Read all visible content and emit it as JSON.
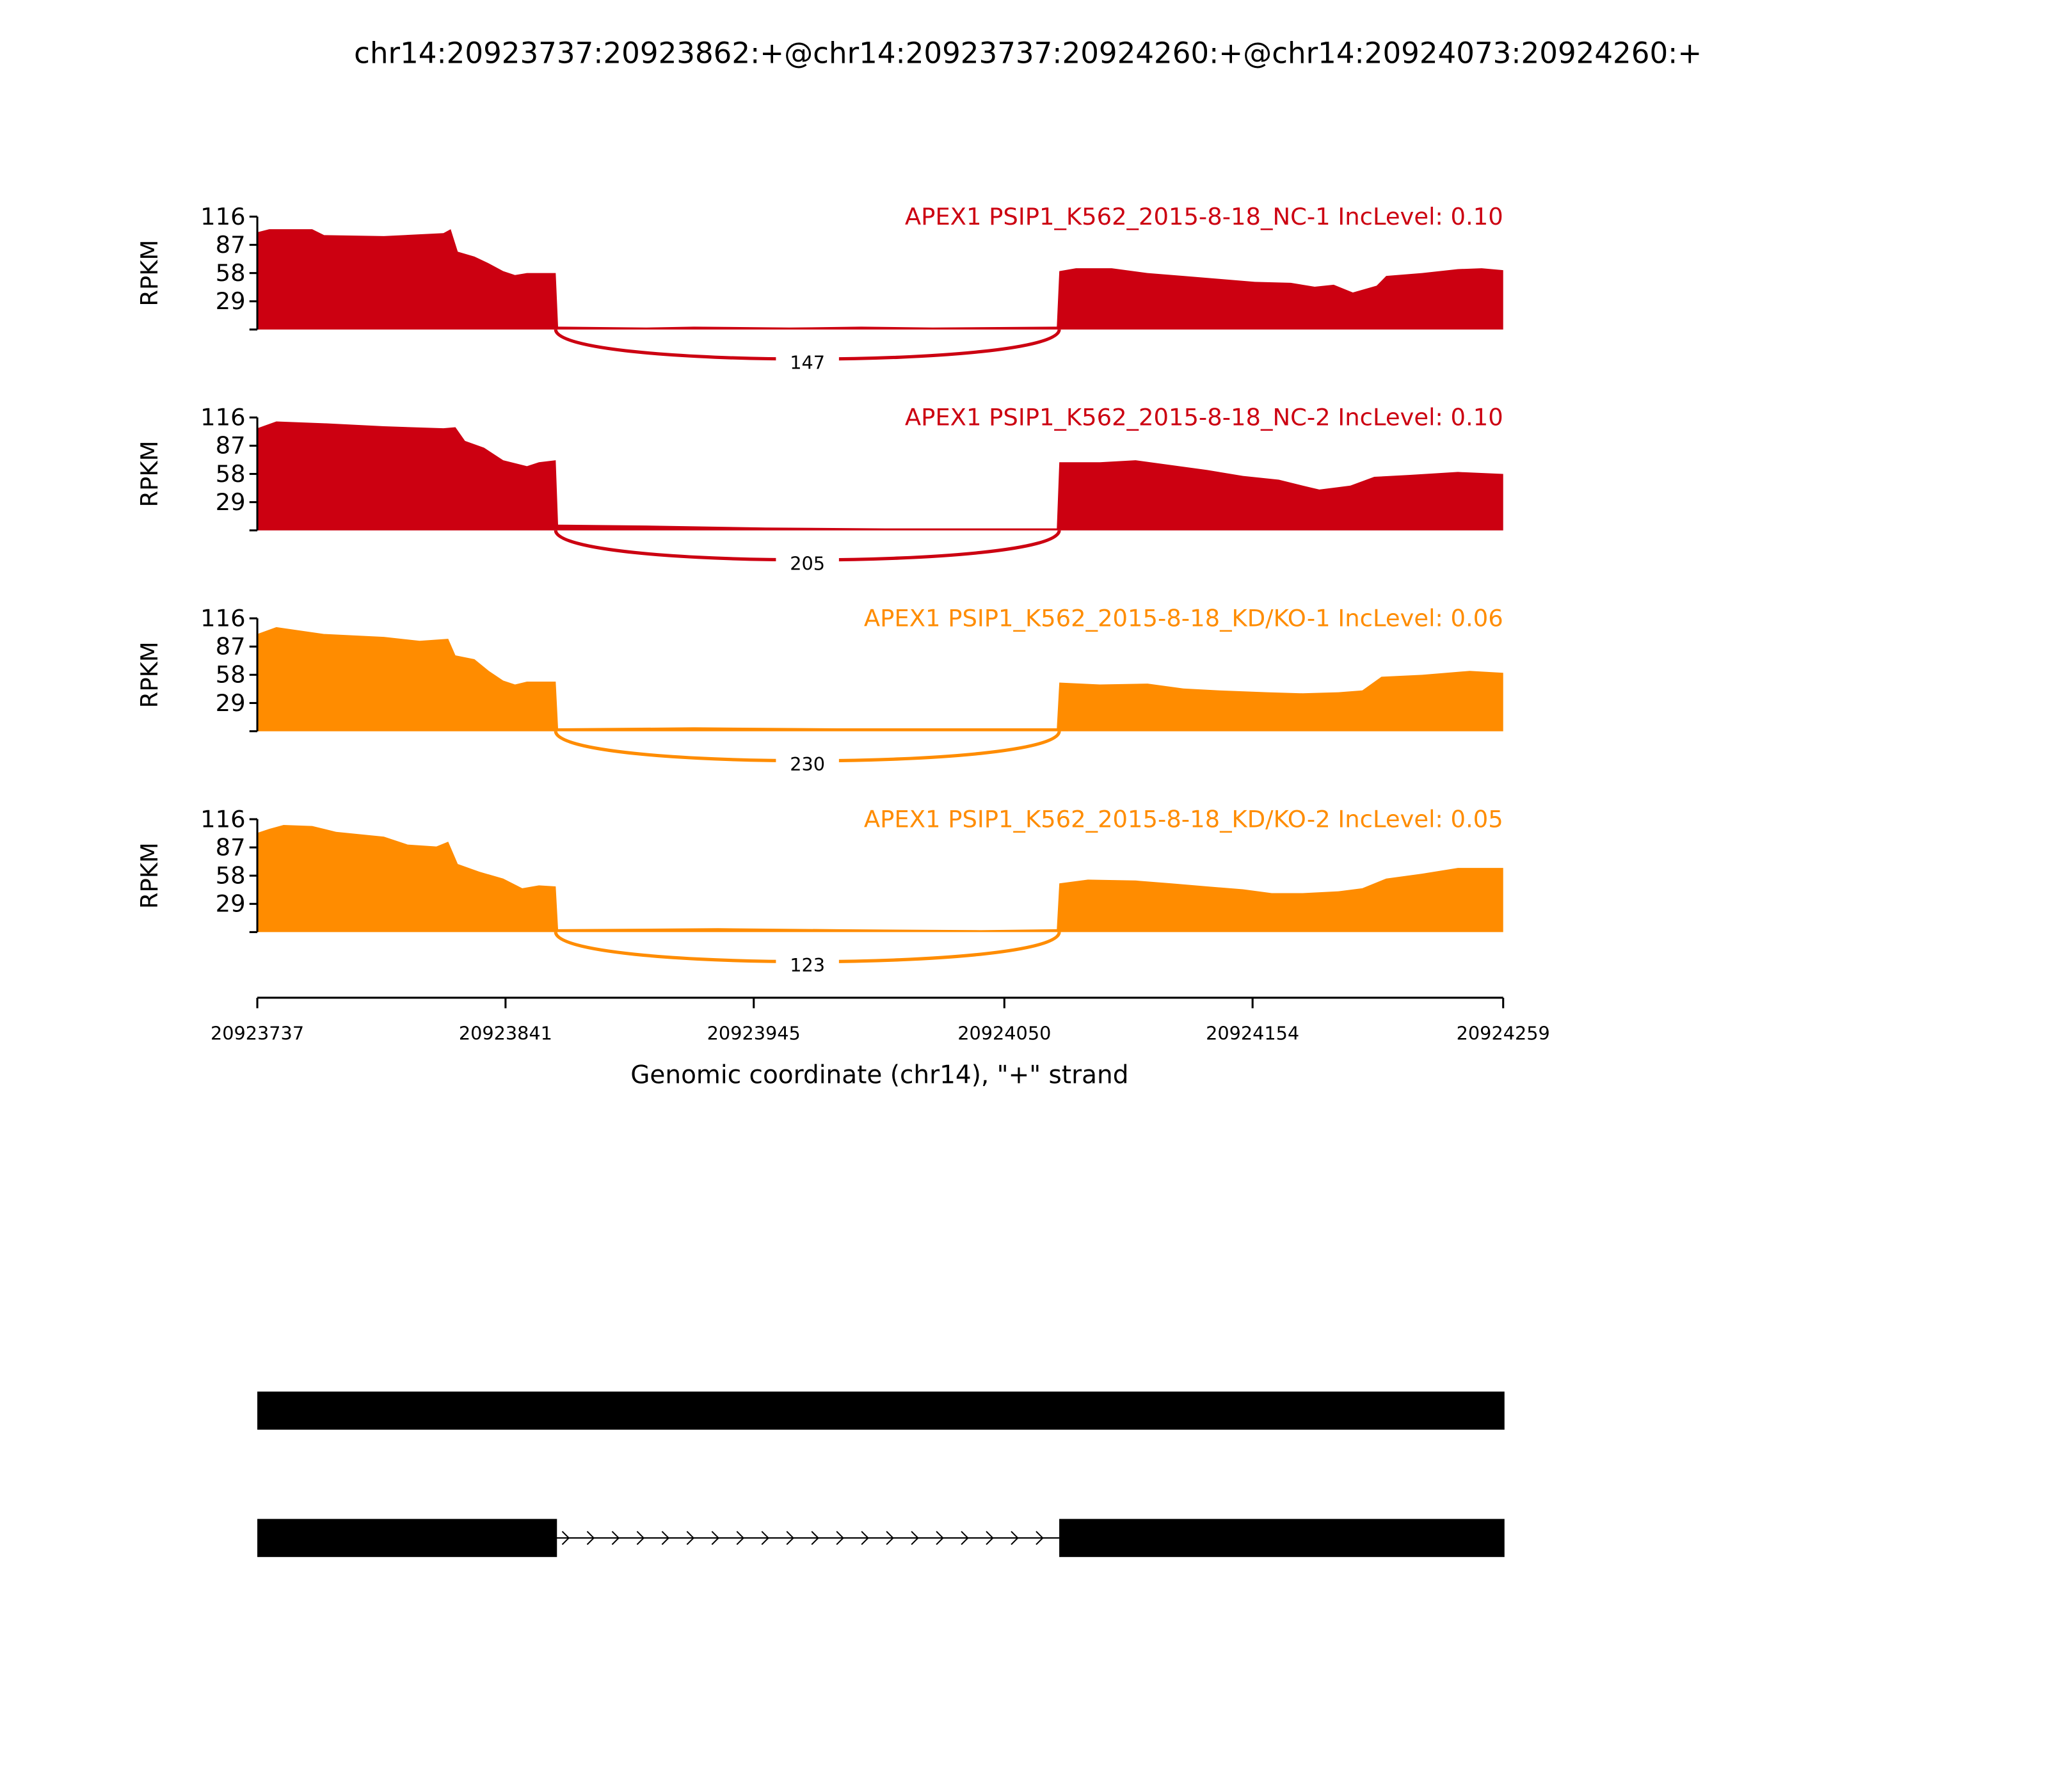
{
  "chart_data": {
    "type": "area",
    "title": "chr14:20923737:20923862:+@chr14:20923737:20924260:+@chr14:20924073:20924260:+",
    "xlabel": "Genomic coordinate (chr14), \"+\" strand",
    "ylabel": "RPKM",
    "xlim": [
      20923737,
      20924259
    ],
    "ylim": [
      0,
      116
    ],
    "yticks": [
      "116",
      "87",
      "58",
      "29"
    ],
    "ytick_values": [
      116,
      87,
      58,
      29
    ],
    "xticks": [
      "20923737",
      "20923841",
      "20923945",
      "20924050",
      "20924154",
      "20924259"
    ],
    "xtick_values": [
      20923737,
      20923841,
      20923945,
      20924050,
      20924154,
      20924259
    ],
    "colors": {
      "NC": "#CC0011",
      "KD": "#FF8C00"
    },
    "junction": {
      "start": 20923862,
      "end": 20924073
    },
    "series": [
      {
        "name": "APEX1 PSIP1_K562_2015-8-18_NC-1 IncLevel: 0.10",
        "color": "#CC0011",
        "junction_count": "147",
        "points": [
          [
            20923737,
            100
          ],
          [
            20923742,
            103
          ],
          [
            20923760,
            103
          ],
          [
            20923765,
            97
          ],
          [
            20923790,
            96
          ],
          [
            20923815,
            99
          ],
          [
            20923818,
            103
          ],
          [
            20923821,
            80
          ],
          [
            20923828,
            75
          ],
          [
            20923834,
            68
          ],
          [
            20923840,
            60
          ],
          [
            20923845,
            56
          ],
          [
            20923850,
            58
          ],
          [
            20923862,
            58
          ],
          [
            20923863,
            3
          ],
          [
            20923900,
            2
          ],
          [
            20923920,
            3
          ],
          [
            20923960,
            2
          ],
          [
            20923990,
            3
          ],
          [
            20924020,
            2
          ],
          [
            20924072,
            3
          ],
          [
            20924073,
            60
          ],
          [
            20924080,
            63
          ],
          [
            20924095,
            63
          ],
          [
            20924110,
            58
          ],
          [
            20924125,
            55
          ],
          [
            20924140,
            52
          ],
          [
            20924155,
            49
          ],
          [
            20924170,
            48
          ],
          [
            20924180,
            44
          ],
          [
            20924188,
            46
          ],
          [
            20924196,
            38
          ],
          [
            20924206,
            45
          ],
          [
            20924210,
            55
          ],
          [
            20924225,
            58
          ],
          [
            20924240,
            62
          ],
          [
            20924250,
            63
          ],
          [
            20924259,
            61
          ]
        ]
      },
      {
        "name": "APEX1 PSIP1_K562_2015-8-18_NC-2 IncLevel: 0.10",
        "color": "#CC0011",
        "junction_count": "205",
        "points": [
          [
            20923737,
            105
          ],
          [
            20923745,
            112
          ],
          [
            20923765,
            110
          ],
          [
            20923790,
            107
          ],
          [
            20923815,
            105
          ],
          [
            20923820,
            106
          ],
          [
            20923824,
            92
          ],
          [
            20923832,
            85
          ],
          [
            20923840,
            72
          ],
          [
            20923850,
            66
          ],
          [
            20923855,
            70
          ],
          [
            20923862,
            72
          ],
          [
            20923863,
            6
          ],
          [
            20923900,
            5
          ],
          [
            20923950,
            3
          ],
          [
            20924000,
            2
          ],
          [
            20924072,
            2
          ],
          [
            20924073,
            70
          ],
          [
            20924090,
            70
          ],
          [
            20924105,
            72
          ],
          [
            20924120,
            67
          ],
          [
            20924135,
            62
          ],
          [
            20924150,
            56
          ],
          [
            20924165,
            52
          ],
          [
            20924175,
            46
          ],
          [
            20924182,
            42
          ],
          [
            20924195,
            46
          ],
          [
            20924205,
            55
          ],
          [
            20924220,
            57
          ],
          [
            20924240,
            60
          ],
          [
            20924259,
            58
          ]
        ]
      },
      {
        "name": "APEX1 PSIP1_K562_2015-8-18_KD/KO-1 IncLevel: 0.06",
        "color": "#FF8C00",
        "junction_count": "230",
        "points": [
          [
            20923737,
            100
          ],
          [
            20923745,
            107
          ],
          [
            20923765,
            100
          ],
          [
            20923790,
            97
          ],
          [
            20923805,
            93
          ],
          [
            20923817,
            95
          ],
          [
            20923820,
            78
          ],
          [
            20923828,
            74
          ],
          [
            20923834,
            62
          ],
          [
            20923840,
            52
          ],
          [
            20923845,
            48
          ],
          [
            20923850,
            51
          ],
          [
            20923862,
            51
          ],
          [
            20923863,
            3
          ],
          [
            20923920,
            4
          ],
          [
            20923980,
            3
          ],
          [
            20924040,
            3
          ],
          [
            20924072,
            3
          ],
          [
            20924073,
            50
          ],
          [
            20924090,
            48
          ],
          [
            20924110,
            49
          ],
          [
            20924125,
            44
          ],
          [
            20924140,
            42
          ],
          [
            20924160,
            40
          ],
          [
            20924175,
            39
          ],
          [
            20924190,
            40
          ],
          [
            20924200,
            42
          ],
          [
            20924208,
            56
          ],
          [
            20924225,
            58
          ],
          [
            20924245,
            62
          ],
          [
            20924259,
            60
          ]
        ]
      },
      {
        "name": "APEX1 PSIP1_K562_2015-8-18_KD/KO-2 IncLevel: 0.05",
        "color": "#FF8C00",
        "junction_count": "123",
        "points": [
          [
            20923737,
            102
          ],
          [
            20923742,
            106
          ],
          [
            20923748,
            110
          ],
          [
            20923760,
            109
          ],
          [
            20923770,
            103
          ],
          [
            20923790,
            98
          ],
          [
            20923800,
            90
          ],
          [
            20923812,
            88
          ],
          [
            20923817,
            93
          ],
          [
            20923821,
            70
          ],
          [
            20923830,
            62
          ],
          [
            20923840,
            55
          ],
          [
            20923848,
            45
          ],
          [
            20923855,
            48
          ],
          [
            20923862,
            47
          ],
          [
            20923863,
            3
          ],
          [
            20923930,
            4
          ],
          [
            20923980,
            3
          ],
          [
            20924040,
            2
          ],
          [
            20924072,
            3
          ],
          [
            20924073,
            50
          ],
          [
            20924085,
            54
          ],
          [
            20924105,
            53
          ],
          [
            20924120,
            50
          ],
          [
            20924135,
            47
          ],
          [
            20924150,
            44
          ],
          [
            20924162,
            40
          ],
          [
            20924175,
            40
          ],
          [
            20924190,
            42
          ],
          [
            20924200,
            45
          ],
          [
            20924210,
            55
          ],
          [
            20924225,
            60
          ],
          [
            20924240,
            66
          ],
          [
            20924259,
            66
          ]
        ]
      }
    ],
    "gene_models": [
      {
        "exons": [
          [
            20923737,
            20924259
          ]
        ]
      },
      {
        "exons": [
          [
            20923737,
            20923862
          ],
          [
            20924073,
            20924259
          ]
        ]
      }
    ]
  }
}
